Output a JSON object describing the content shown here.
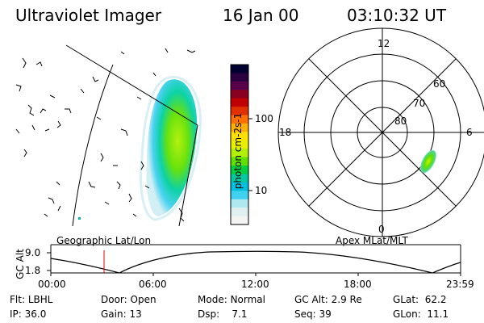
{
  "header": {
    "title": "Ultraviolet Imager",
    "date": "16 Jan 00",
    "time": "03:10:32 UT"
  },
  "colorbar": {
    "label": "photon cm-2s-1",
    "ticks": [
      "100",
      "10"
    ],
    "colors": [
      "#000030",
      "#2a0040",
      "#5a004a",
      "#8a0020",
      "#c00000",
      "#e03000",
      "#ff7000",
      "#ffb000",
      "#ffe000",
      "#e8f000",
      "#b0f000",
      "#60e000",
      "#00d040",
      "#00c8a0",
      "#00c0e0",
      "#40d0f0",
      "#b0e8f0",
      "#e0f0f0",
      "#f4f4f4"
    ]
  },
  "polar": {
    "mlt_labels": {
      "top": "12",
      "bottom": "0",
      "left": "18",
      "right": "6"
    },
    "lat_labels": [
      "60",
      "70",
      "80"
    ]
  },
  "map_titles": {
    "left": "Geographic Lat/Lon",
    "right": "Apex MLat/MLT"
  },
  "timeline": {
    "ylabel": "GC Alt",
    "y_ticks": [
      "9.0",
      "1.8"
    ],
    "x_ticks": [
      "00:00",
      "06:00",
      "12:00",
      "18:00",
      "23:59"
    ]
  },
  "info": {
    "row1": [
      {
        "label": "Flt:",
        "value": "LBHL"
      },
      {
        "label": "Door:",
        "value": "Open"
      },
      {
        "label": "Mode:",
        "value": "Normal"
      },
      {
        "label": "GC Alt:",
        "value": "2.9 Re"
      },
      {
        "label": "GLat:",
        "value": "62.2"
      }
    ],
    "row2": [
      {
        "label": "IP:",
        "value": "36.0"
      },
      {
        "label": "Gain:",
        "value": "13"
      },
      {
        "label": "Dsp:",
        "value": "7.1"
      },
      {
        "label": "Seq:",
        "value": "39"
      },
      {
        "label": "GLon:",
        "value": "11.1"
      }
    ]
  }
}
